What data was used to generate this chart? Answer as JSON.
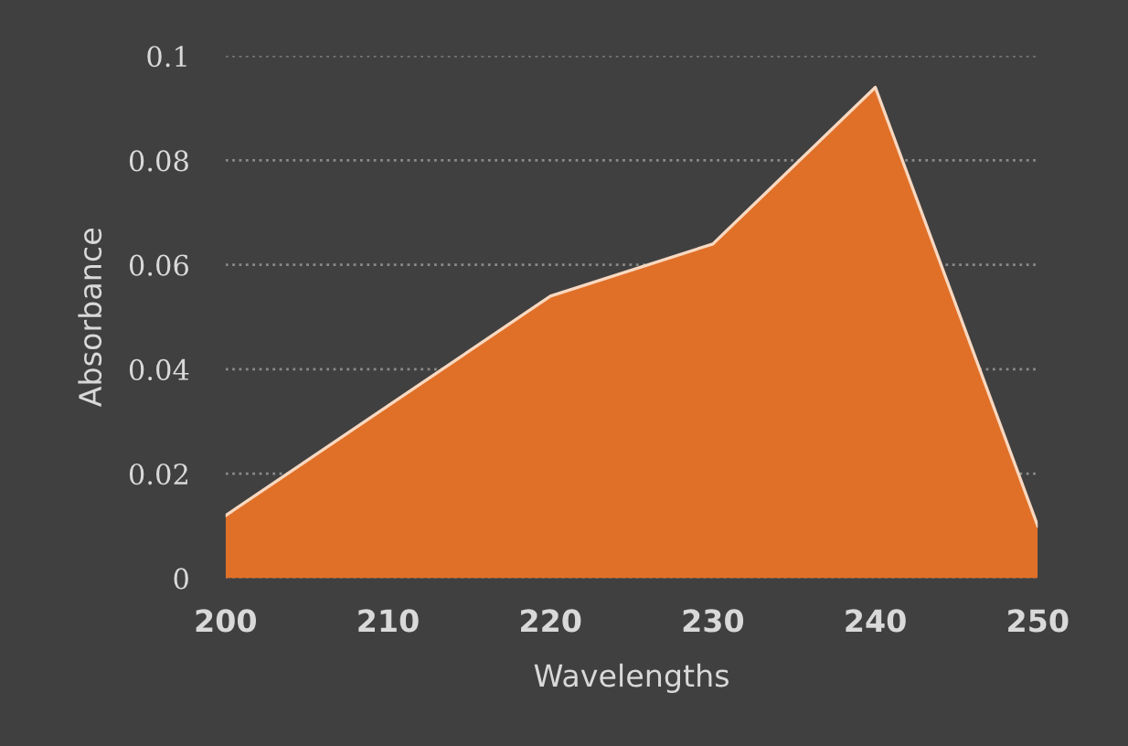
{
  "chart_data": {
    "type": "area",
    "xlabel": "Wavelengths",
    "ylabel": "Absorbance",
    "categories": [
      "200",
      "210",
      "220",
      "230",
      "240",
      "250"
    ],
    "series": [
      {
        "color": "#e07028",
        "values": [
          0.012,
          0.033,
          0.054,
          0.064,
          0.094,
          0.01
        ]
      }
    ],
    "ylim": [
      0,
      0.1
    ],
    "yticks": [
      0,
      0.02,
      0.04,
      0.06,
      0.08,
      0.1
    ],
    "grid": "y",
    "legend": false
  }
}
